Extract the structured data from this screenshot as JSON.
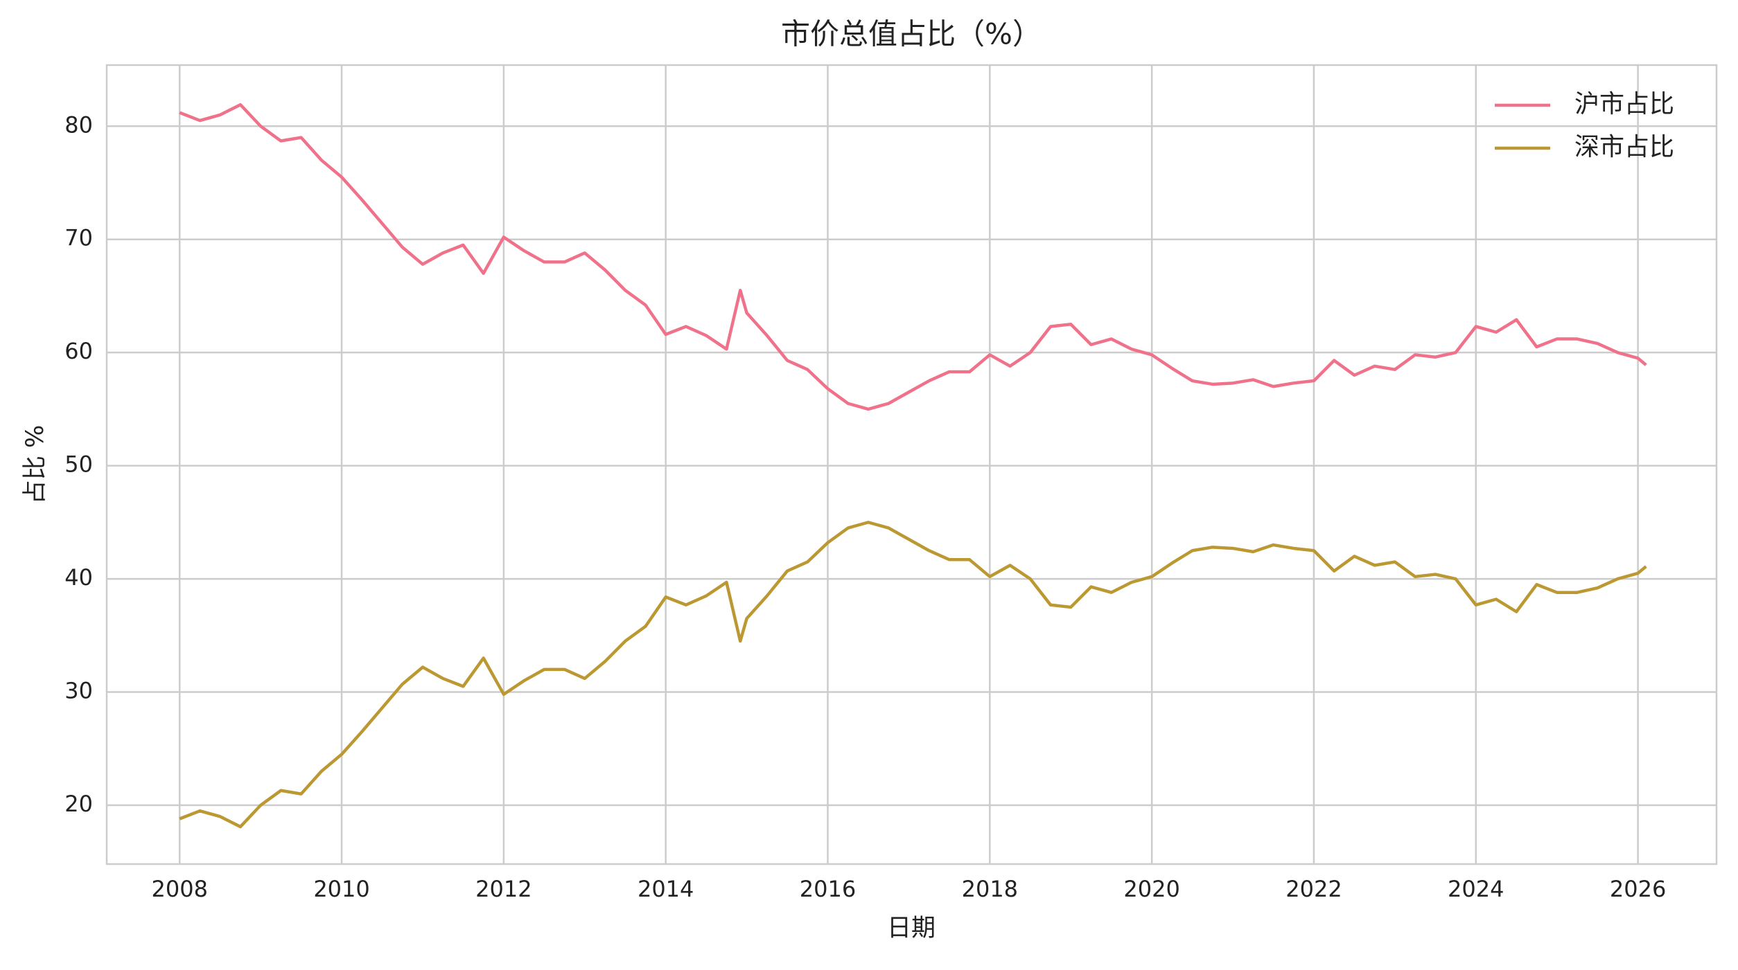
{
  "chart_data": {
    "type": "line",
    "title": "市价总值占比（%）",
    "x_label": "日期",
    "y_label": "占比 %",
    "x": [
      2008.0,
      2008.25,
      2008.5,
      2008.75,
      2009.0,
      2009.25,
      2009.5,
      2009.75,
      2010.0,
      2010.25,
      2010.5,
      2010.75,
      2011.0,
      2011.25,
      2011.5,
      2011.75,
      2012.0,
      2012.25,
      2012.5,
      2012.75,
      2013.0,
      2013.25,
      2013.5,
      2013.75,
      2014.0,
      2014.25,
      2014.5,
      2014.75,
      2014.92,
      2015.0,
      2015.25,
      2015.5,
      2015.75,
      2016.0,
      2016.25,
      2016.5,
      2016.75,
      2017.0,
      2017.25,
      2017.5,
      2017.75,
      2018.0,
      2018.25,
      2018.5,
      2018.75,
      2019.0,
      2019.25,
      2019.5,
      2019.75,
      2020.0,
      2020.25,
      2020.5,
      2020.75,
      2021.0,
      2021.25,
      2021.5,
      2021.75,
      2022.0,
      2022.25,
      2022.5,
      2022.75,
      2023.0,
      2023.25,
      2023.5,
      2023.75,
      2024.0,
      2024.25,
      2024.5,
      2024.75,
      2025.0,
      2025.25,
      2025.5,
      2025.75,
      2026.0,
      2026.1
    ],
    "series": [
      {
        "name": "沪市占比",
        "color": "#f0728a",
        "values": [
          81.2,
          80.5,
          81.0,
          81.9,
          80.0,
          78.7,
          79.0,
          77.0,
          75.5,
          73.5,
          71.4,
          69.3,
          67.8,
          68.8,
          69.5,
          67.0,
          70.2,
          69.0,
          68.0,
          68.0,
          68.8,
          67.3,
          65.5,
          64.2,
          61.6,
          62.3,
          61.5,
          60.3,
          65.5,
          63.5,
          61.5,
          59.3,
          58.5,
          56.8,
          55.5,
          55.0,
          55.5,
          56.5,
          57.5,
          58.3,
          58.3,
          59.8,
          58.8,
          60.0,
          62.3,
          62.5,
          60.7,
          61.2,
          60.3,
          59.8,
          58.6,
          57.5,
          57.2,
          57.3,
          57.6,
          57.0,
          57.3,
          57.5,
          59.3,
          58.0,
          58.8,
          58.5,
          59.8,
          59.6,
          60.0,
          62.3,
          61.8,
          62.9,
          60.5,
          61.2,
          61.2,
          60.8,
          60.0,
          59.5,
          58.9
        ]
      },
      {
        "name": "深市占比",
        "color": "#bb9832",
        "values": [
          18.8,
          19.5,
          19.0,
          18.1,
          20.0,
          21.3,
          21.0,
          23.0,
          24.5,
          26.5,
          28.6,
          30.7,
          32.2,
          31.2,
          30.5,
          33.0,
          29.8,
          31.0,
          32.0,
          32.0,
          31.2,
          32.7,
          34.5,
          35.8,
          38.4,
          37.7,
          38.5,
          39.7,
          34.5,
          36.5,
          38.5,
          40.7,
          41.5,
          43.2,
          44.5,
          45.0,
          44.5,
          43.5,
          42.5,
          41.7,
          41.7,
          40.2,
          41.2,
          40.0,
          37.7,
          37.5,
          39.3,
          38.8,
          39.7,
          40.2,
          41.4,
          42.5,
          42.8,
          42.7,
          42.4,
          43.0,
          42.7,
          42.5,
          40.7,
          42.0,
          41.2,
          41.5,
          40.2,
          40.4,
          40.0,
          37.7,
          38.2,
          37.1,
          39.5,
          38.8,
          38.8,
          39.2,
          40.0,
          40.5,
          41.1
        ]
      }
    ],
    "xlim": [
      2007.1,
      2026.97
    ],
    "ylim": [
      14.8,
      85.4
    ],
    "xticks": [
      2008,
      2010,
      2012,
      2014,
      2016,
      2018,
      2020,
      2022,
      2024,
      2026
    ],
    "yticks": [
      20,
      30,
      40,
      50,
      60,
      70,
      80
    ],
    "grid": true,
    "legend": "upper right"
  }
}
